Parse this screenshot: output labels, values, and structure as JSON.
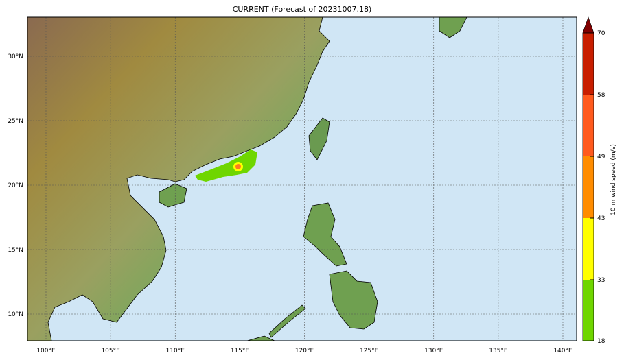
{
  "title": "CURRENT (Forecast of 20231007.18)",
  "map": {
    "extent": {
      "lon": [
        98.6,
        141.1
      ],
      "lat": [
        7.9,
        33.0
      ]
    },
    "lon_ticks": [
      "100°E",
      "105°E",
      "110°E",
      "115°E",
      "120°E",
      "125°E",
      "130°E",
      "135°E",
      "140°E"
    ],
    "lat_ticks": [
      "10°N",
      "15°N",
      "20°N",
      "25°N",
      "30°N"
    ],
    "ocean_color": "#d0e6f5",
    "gridlines": true,
    "storm_center": {
      "lon": 114.9,
      "lat": 21.4
    }
  },
  "colorbar": {
    "label": "10 m wind speed (m/s)",
    "ticks": [
      "18",
      "33",
      "43",
      "49",
      "58",
      "70"
    ],
    "colors": [
      "#6fd600",
      "#ffff00",
      "#ff8c00",
      "#ff5a1e",
      "#c81e00",
      "#800000"
    ],
    "extend": "max"
  }
}
